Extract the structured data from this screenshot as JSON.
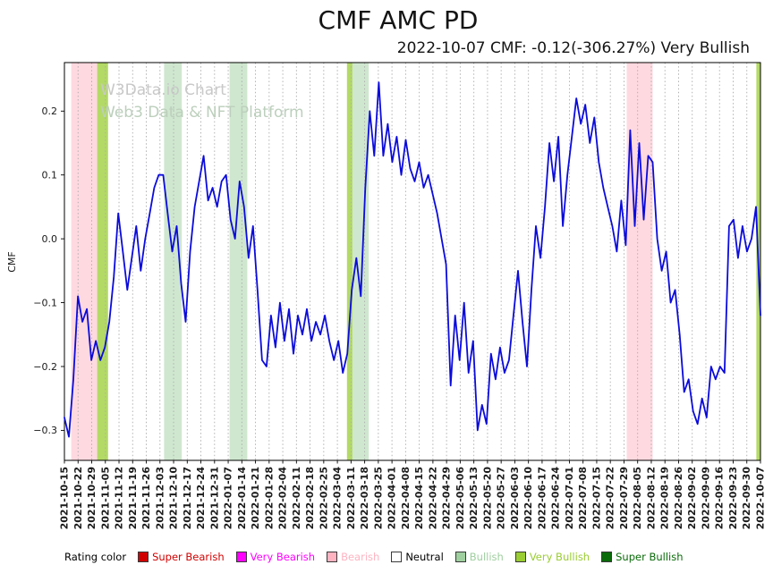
{
  "chart_data": {
    "type": "line",
    "title": "CMF AMC PD",
    "subtitle": "2022-10-07 CMF: -0.12(-306.27%) Very Bullish",
    "xlabel": "",
    "ylabel": "CMF",
    "watermark_line1": "W3Data.io Chart",
    "watermark_line2": "Web3 Data & NFT Platform",
    "grid": "vertical-dotted",
    "legend_position": "bottom",
    "ylim": [
      -0.347,
      0.276
    ],
    "yticks": [
      {
        "label": "0.2",
        "value": 0.2
      },
      {
        "label": "0.1",
        "value": 0.1
      },
      {
        "label": "0.0",
        "value": 0.0
      },
      {
        "label": "−0.1",
        "value": -0.1
      },
      {
        "label": "−0.2",
        "value": -0.2
      },
      {
        "label": "−0.3",
        "value": -0.3
      }
    ],
    "categories": [
      "2021-10-15",
      "2021-10-22",
      "2021-10-29",
      "2021-11-05",
      "2021-11-12",
      "2021-11-19",
      "2021-11-26",
      "2021-12-03",
      "2021-12-10",
      "2021-12-17",
      "2021-12-24",
      "2021-12-31",
      "2022-01-07",
      "2022-01-14",
      "2022-01-21",
      "2022-01-28",
      "2022-02-04",
      "2022-02-11",
      "2022-02-18",
      "2022-02-25",
      "2022-03-04",
      "2022-03-11",
      "2022-03-18",
      "2022-03-25",
      "2022-04-01",
      "2022-04-08",
      "2022-04-15",
      "2022-04-22",
      "2022-04-29",
      "2022-05-06",
      "2022-05-13",
      "2022-05-20",
      "2022-05-27",
      "2022-06-03",
      "2022-06-10",
      "2022-06-17",
      "2022-06-24",
      "2022-07-01",
      "2022-07-08",
      "2022-07-15",
      "2022-07-22",
      "2022-07-29",
      "2022-08-05",
      "2022-08-12",
      "2022-08-19",
      "2022-08-26",
      "2022-09-02",
      "2022-09-09",
      "2022-09-16",
      "2022-09-23",
      "2022-09-30",
      "2022-10-07"
    ],
    "series": [
      {
        "name": "CMF",
        "color": "#0b0bdb",
        "values": [
          -0.28,
          -0.31,
          -0.22,
          -0.09,
          -0.13,
          -0.11,
          -0.19,
          -0.16,
          -0.19,
          -0.17,
          -0.13,
          -0.06,
          0.04,
          -0.02,
          -0.08,
          -0.03,
          0.02,
          -0.05,
          0.0,
          0.04,
          0.08,
          0.1,
          0.1,
          0.04,
          -0.02,
          0.02,
          -0.07,
          -0.13,
          -0.02,
          0.05,
          0.09,
          0.13,
          0.06,
          0.08,
          0.05,
          0.09,
          0.1,
          0.03,
          0.0,
          0.09,
          0.05,
          -0.03,
          0.02,
          -0.08,
          -0.19,
          -0.2,
          -0.12,
          -0.17,
          -0.1,
          -0.16,
          -0.11,
          -0.18,
          -0.12,
          -0.15,
          -0.11,
          -0.16,
          -0.13,
          -0.15,
          -0.12,
          -0.16,
          -0.19,
          -0.16,
          -0.21,
          -0.18,
          -0.08,
          -0.03,
          -0.09,
          0.08,
          0.2,
          0.13,
          0.245,
          0.13,
          0.18,
          0.12,
          0.16,
          0.1,
          0.155,
          0.11,
          0.09,
          0.12,
          0.08,
          0.1,
          0.07,
          0.04,
          0.0,
          -0.04,
          -0.23,
          -0.12,
          -0.19,
          -0.1,
          -0.21,
          -0.16,
          -0.3,
          -0.26,
          -0.29,
          -0.18,
          -0.22,
          -0.17,
          -0.21,
          -0.19,
          -0.12,
          -0.05,
          -0.13,
          -0.2,
          -0.08,
          0.02,
          -0.03,
          0.05,
          0.15,
          0.09,
          0.16,
          0.02,
          0.1,
          0.16,
          0.22,
          0.18,
          0.21,
          0.15,
          0.19,
          0.12,
          0.08,
          0.05,
          0.02,
          -0.02,
          0.06,
          -0.01,
          0.17,
          0.02,
          0.15,
          0.03,
          0.13,
          0.12,
          0.0,
          -0.05,
          -0.02,
          -0.1,
          -0.08,
          -0.15,
          -0.24,
          -0.22,
          -0.27,
          -0.29,
          -0.25,
          -0.28,
          -0.2,
          -0.22,
          -0.2,
          -0.21,
          0.02,
          0.03,
          -0.03,
          0.02,
          -0.02,
          0.0,
          0.05,
          -0.12
        ]
      }
    ],
    "bands": [
      {
        "rating": "Bearish",
        "start_date": "2021-10-18",
        "end_date": "2021-10-31",
        "start_week": 0.5,
        "end_week": 2.4,
        "color": "#ffb3c1",
        "opacity": 0.5
      },
      {
        "rating": "Very Bullish",
        "start_date": "2021-10-31",
        "end_date": "2021-11-06",
        "start_week": 2.4,
        "end_week": 3.2,
        "color": "#9acd32",
        "opacity": 0.75
      },
      {
        "rating": "Bullish",
        "start_date": "2021-12-05",
        "end_date": "2021-12-14",
        "start_week": 7.3,
        "end_week": 8.6,
        "color": "#9fcf9f",
        "opacity": 0.5
      },
      {
        "rating": "Bullish",
        "start_date": "2022-01-09",
        "end_date": "2022-01-17",
        "start_week": 12.1,
        "end_week": 13.4,
        "color": "#9fcf9f",
        "opacity": 0.5
      },
      {
        "rating": "Very Bullish",
        "start_date": "2022-03-09",
        "end_date": "2022-03-12",
        "start_week": 20.7,
        "end_week": 21.1,
        "color": "#9acd32",
        "opacity": 0.75
      },
      {
        "rating": "Bullish",
        "start_date": "2022-03-12",
        "end_date": "2022-03-20",
        "start_week": 21.1,
        "end_week": 22.3,
        "color": "#9fcf9f",
        "opacity": 0.5
      },
      {
        "rating": "Bearish",
        "start_date": "2022-07-30",
        "end_date": "2022-08-12",
        "start_week": 41.2,
        "end_week": 43.1,
        "color": "#ffb3c1",
        "opacity": 0.5
      },
      {
        "rating": "Very Bullish",
        "start_date": "2022-10-05",
        "end_date": "2022-10-07",
        "start_week": 50.7,
        "end_week": 51.0,
        "color": "#9acd32",
        "opacity": 0.75
      }
    ]
  },
  "legend": {
    "label": "Rating color",
    "items": [
      {
        "label": "Super Bearish",
        "color": "#d10000"
      },
      {
        "label": "Very Bearish",
        "color": "#ff00ff"
      },
      {
        "label": "Bearish",
        "color": "#ffb3c1"
      },
      {
        "label": "Neutral",
        "color": "#ffffff",
        "text_color": "#000000"
      },
      {
        "label": "Bullish",
        "color": "#9fcf9f"
      },
      {
        "label": "Very Bullish",
        "color": "#9acd32"
      },
      {
        "label": "Super Bullish",
        "color": "#0a6b0a"
      }
    ]
  }
}
